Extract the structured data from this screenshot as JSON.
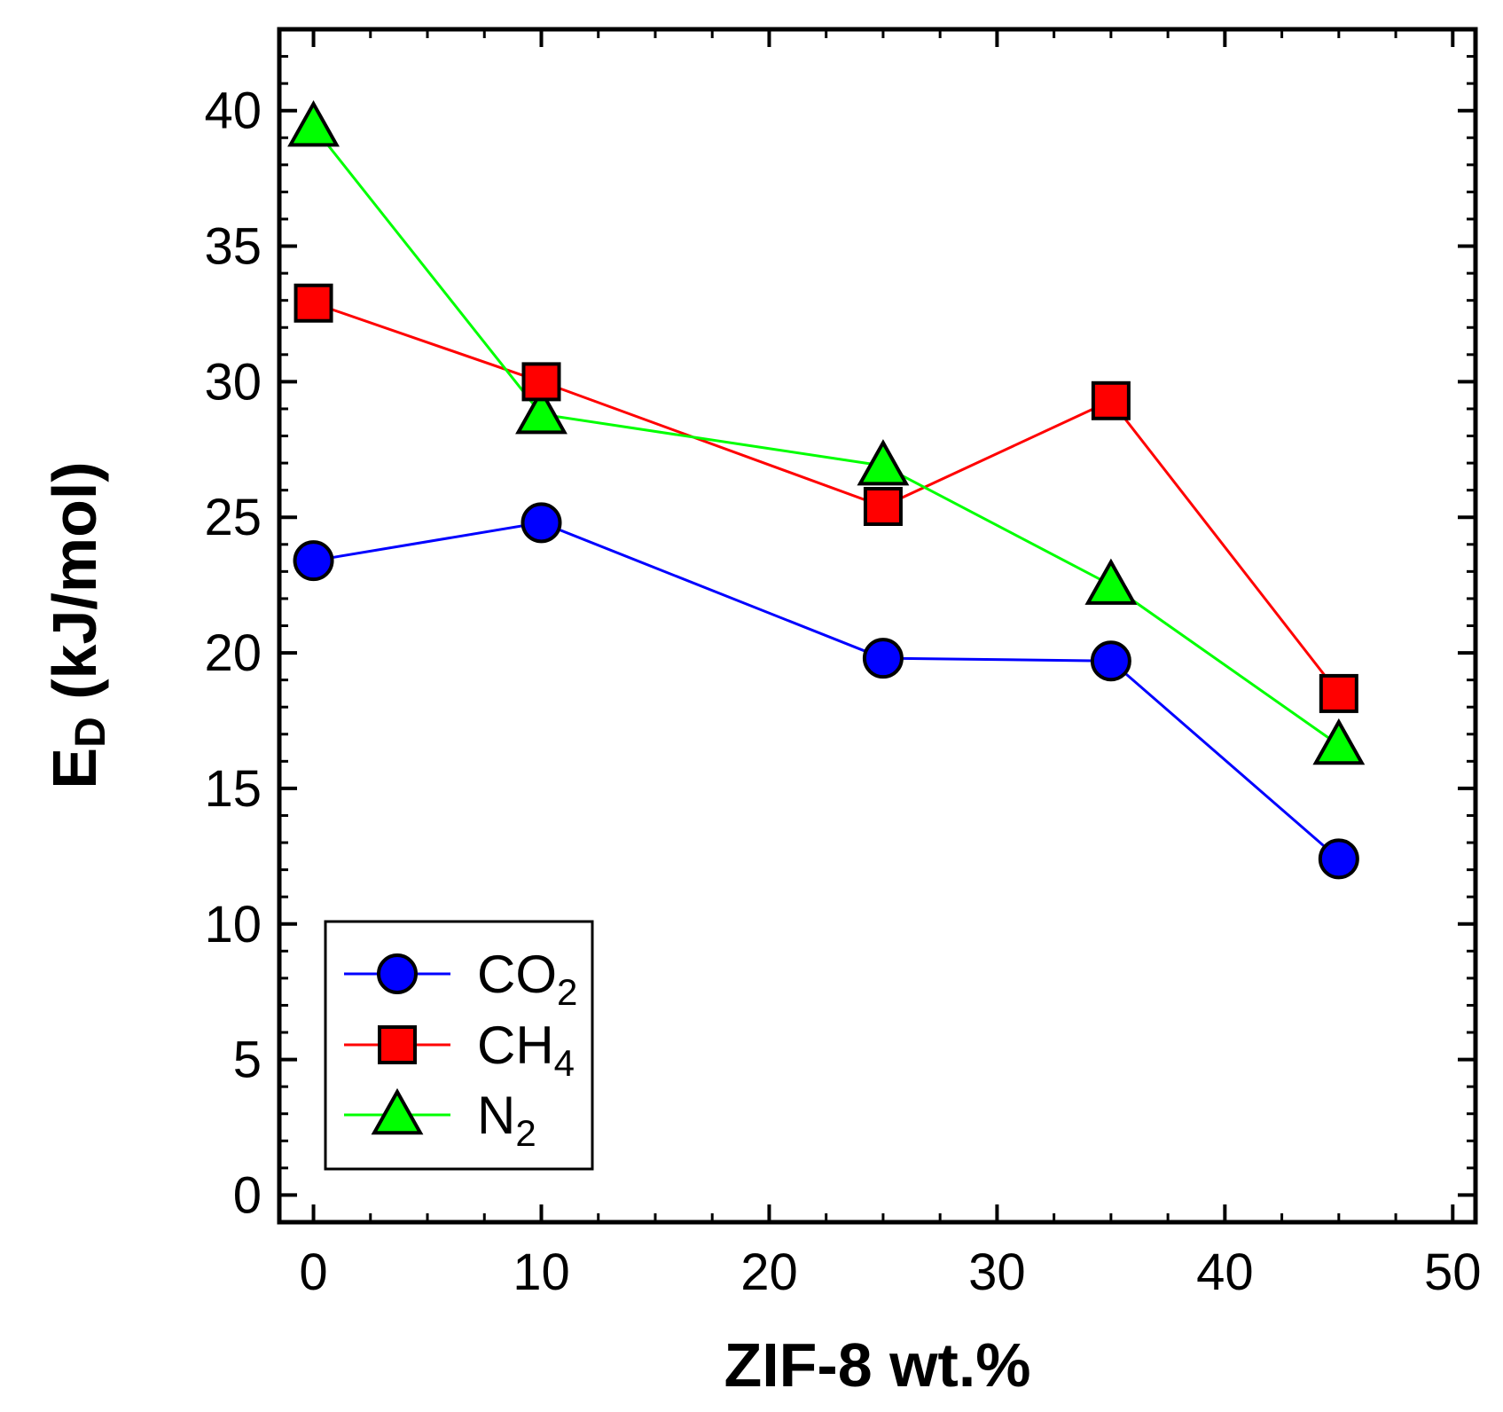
{
  "chart_data": {
    "type": "line",
    "title": "",
    "xlabel": "ZIF-8 wt.%",
    "ylabel_main": "E",
    "ylabel_sub": "D",
    "ylabel_unit": " (kJ/mol)",
    "xlim": [
      -1.5,
      51
    ],
    "ylim": [
      -1,
      43
    ],
    "xticks": [
      0,
      10,
      20,
      30,
      40,
      50
    ],
    "yticks": [
      0,
      5,
      10,
      15,
      20,
      25,
      30,
      35,
      40
    ],
    "xtick_labels": [
      "0",
      "10",
      "20",
      "30",
      "40",
      "50"
    ],
    "ytick_labels": [
      "0",
      "5",
      "10",
      "15",
      "20",
      "25",
      "30",
      "35",
      "40"
    ],
    "grid": false,
    "legend_position": "bottom-left",
    "x": [
      0,
      10,
      25,
      35,
      45
    ],
    "series": [
      {
        "name": "CO",
        "name_sub": "2",
        "marker": "circle",
        "line_color": "#0000ff",
        "marker_color": "#0000ff",
        "values": [
          23.4,
          24.8,
          19.8,
          19.7,
          12.4
        ]
      },
      {
        "name": "CH",
        "name_sub": "4",
        "marker": "square",
        "line_color": "#ff0000",
        "marker_color": "#ff0000",
        "values": [
          32.9,
          30.0,
          25.4,
          29.3,
          18.5
        ]
      },
      {
        "name": "N",
        "name_sub": "2",
        "marker": "triangle",
        "line_color": "#00ff00",
        "marker_color": "#00ff00",
        "values": [
          39.4,
          28.8,
          26.9,
          22.5,
          16.6
        ]
      }
    ]
  }
}
